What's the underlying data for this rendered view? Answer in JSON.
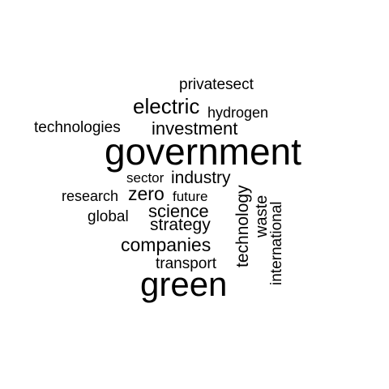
{
  "wordcloud": {
    "words": {
      "privatesect": "privatesect",
      "electric": "electric",
      "hydrogen": "hydrogen",
      "technologies": "technologies",
      "investment": "investment",
      "government": "government",
      "sector": "sector",
      "industry": "industry",
      "research": "research",
      "zero": "zero",
      "future": "future",
      "global": "global",
      "science": "science",
      "strategy": "strategy",
      "companies": "companies",
      "transport": "transport",
      "green": "green",
      "technology": "technology",
      "waste": "waste",
      "international": "international"
    },
    "text_color": "#000000",
    "background_color": "#ffffff"
  }
}
